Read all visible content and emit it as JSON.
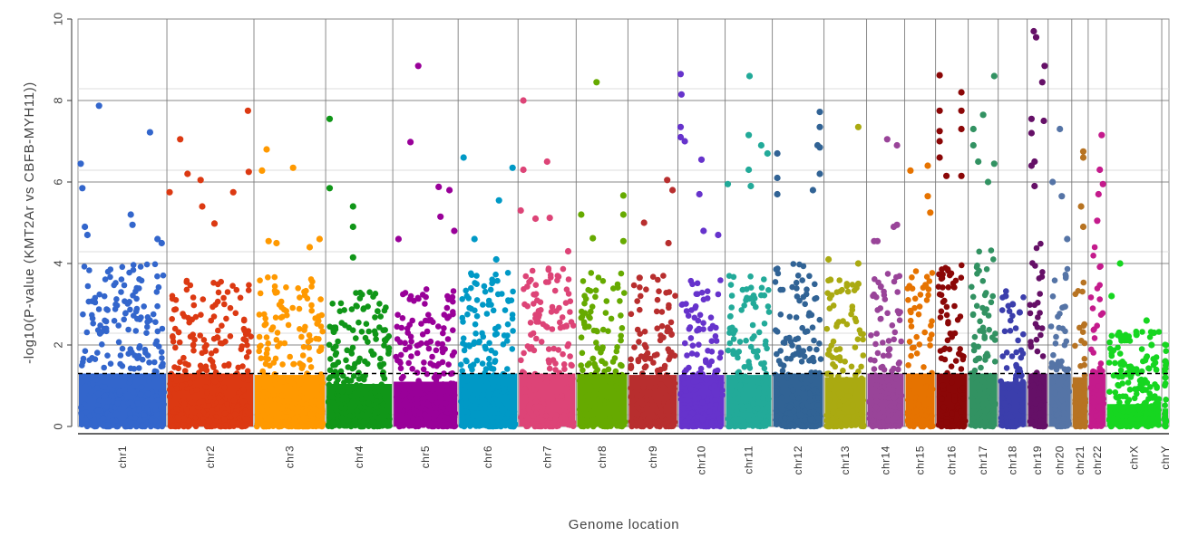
{
  "chart_data": {
    "type": "scatter",
    "subtype": "manhattan",
    "title": "",
    "xlabel": "Genome location",
    "ylabel": "-log10(P-value (KMT2Ar vs CBFB-MYH11))",
    "ylim": [
      0,
      10
    ],
    "yticks": [
      0,
      2,
      4,
      6,
      8,
      10
    ],
    "minor_gridlines": [
      0.29,
      2.29,
      4.29,
      6.29,
      8.29
    ],
    "grid": true,
    "legend": "none",
    "significance_line": {
      "value": 1.3,
      "style": "dashed",
      "color": "#000000"
    },
    "chromosomes": [
      {
        "name": "chr1",
        "color": "#3366cc",
        "span": 0.0812,
        "bulk_max": 2.6,
        "points": [
          [
            0.0,
            6.45
          ],
          [
            0.02,
            5.85
          ],
          [
            0.22,
            7.87
          ],
          [
            0.83,
            7.22
          ],
          [
            0.05,
            4.9
          ],
          [
            0.08,
            4.7
          ],
          [
            0.6,
            5.2
          ],
          [
            0.62,
            4.95
          ],
          [
            0.92,
            4.6
          ],
          [
            0.97,
            4.5
          ]
        ]
      },
      {
        "name": "chr2",
        "color": "#dc3912",
        "span": 0.0795,
        "bulk_max": 2.4,
        "points": [
          [
            0.13,
            7.05
          ],
          [
            0.96,
            7.75
          ],
          [
            0.22,
            6.2
          ],
          [
            0.38,
            6.05
          ],
          [
            0.78,
            5.75
          ],
          [
            0.0,
            5.75
          ],
          [
            0.55,
            4.98
          ],
          [
            0.4,
            5.4
          ],
          [
            0.97,
            6.25
          ]
        ]
      },
      {
        "name": "chr3",
        "color": "#ff9900",
        "span": 0.0655,
        "bulk_max": 2.3,
        "points": [
          [
            0.15,
            6.8
          ],
          [
            0.55,
            6.35
          ],
          [
            0.08,
            6.28
          ],
          [
            0.18,
            4.55
          ],
          [
            0.3,
            4.5
          ],
          [
            0.8,
            4.4
          ],
          [
            0.95,
            4.6
          ]
        ]
      },
      {
        "name": "chr4",
        "color": "#109618",
        "span": 0.0613,
        "bulk_max": 1.9,
        "points": [
          [
            0.02,
            7.55
          ],
          [
            0.02,
            5.85
          ],
          [
            0.4,
            5.4
          ],
          [
            0.4,
            4.9
          ],
          [
            0.4,
            4.15
          ]
        ]
      },
      {
        "name": "chr5",
        "color": "#990099",
        "span": 0.0597,
        "bulk_max": 2.0,
        "points": [
          [
            0.38,
            8.85
          ],
          [
            0.25,
            6.98
          ],
          [
            0.72,
            5.88
          ],
          [
            0.9,
            5.8
          ],
          [
            0.75,
            5.15
          ],
          [
            0.05,
            4.6
          ],
          [
            0.98,
            4.8
          ]
        ]
      },
      {
        "name": "chr6",
        "color": "#0099c6",
        "span": 0.0547,
        "bulk_max": 2.4,
        "points": [
          [
            0.7,
            5.55
          ],
          [
            0.05,
            6.6
          ],
          [
            0.95,
            6.35
          ],
          [
            0.65,
            4.1
          ],
          [
            0.25,
            4.6
          ]
        ]
      },
      {
        "name": "chr7",
        "color": "#dd4477",
        "span": 0.0531,
        "bulk_max": 2.5,
        "points": [
          [
            0.05,
            8.0
          ],
          [
            0.5,
            6.5
          ],
          [
            0.05,
            6.3
          ],
          [
            0.0,
            5.3
          ],
          [
            0.55,
            5.12
          ],
          [
            0.28,
            5.1
          ],
          [
            0.9,
            4.3
          ]
        ]
      },
      {
        "name": "chr8",
        "color": "#66aa00",
        "span": 0.0473,
        "bulk_max": 2.4,
        "points": [
          [
            0.38,
            8.45
          ],
          [
            0.05,
            5.2
          ],
          [
            0.3,
            4.62
          ],
          [
            0.96,
            5.67
          ],
          [
            0.96,
            5.2
          ],
          [
            0.96,
            4.55
          ]
        ]
      },
      {
        "name": "chr9",
        "color": "#b82e2e",
        "span": 0.0456,
        "bulk_max": 2.3,
        "points": [
          [
            0.3,
            5.0
          ],
          [
            0.94,
            5.8
          ],
          [
            0.82,
            6.05
          ],
          [
            0.85,
            4.5
          ],
          [
            0.2,
            3.65
          ]
        ]
      },
      {
        "name": "chr10",
        "color": "#6633cc",
        "span": 0.0431,
        "bulk_max": 2.3,
        "points": [
          [
            0.0,
            8.65
          ],
          [
            0.02,
            8.15
          ],
          [
            0.0,
            7.35
          ],
          [
            0.0,
            7.1
          ],
          [
            0.1,
            7.0
          ],
          [
            0.5,
            6.55
          ],
          [
            0.45,
            5.7
          ],
          [
            0.55,
            4.8
          ],
          [
            0.9,
            4.7
          ]
        ]
      },
      {
        "name": "chr11",
        "color": "#22aa99",
        "span": 0.0431,
        "bulk_max": 2.3,
        "points": [
          [
            0.52,
            8.6
          ],
          [
            0.5,
            7.15
          ],
          [
            0.8,
            6.9
          ],
          [
            0.0,
            5.95
          ],
          [
            0.5,
            6.3
          ],
          [
            0.55,
            5.9
          ],
          [
            0.95,
            6.7
          ]
        ]
      },
      {
        "name": "chr12",
        "color": "#316395",
        "span": 0.0472,
        "bulk_max": 2.6,
        "points": [
          [
            0.97,
            7.72
          ],
          [
            0.97,
            7.35
          ],
          [
            0.97,
            6.85
          ],
          [
            0.92,
            6.9
          ],
          [
            0.97,
            6.2
          ],
          [
            0.05,
            6.7
          ],
          [
            0.05,
            6.1
          ],
          [
            0.05,
            5.7
          ],
          [
            0.82,
            5.8
          ]
        ]
      },
      {
        "name": "chr13",
        "color": "#aaaa11",
        "span": 0.0389,
        "bulk_max": 2.2,
        "points": [
          [
            0.85,
            7.35
          ],
          [
            0.85,
            4.0
          ],
          [
            0.85,
            3.5
          ],
          [
            0.05,
            4.1
          ],
          [
            0.1,
            3.6
          ]
        ]
      },
      {
        "name": "chr14",
        "color": "#994499",
        "span": 0.0348,
        "bulk_max": 2.4,
        "points": [
          [
            0.55,
            7.05
          ],
          [
            0.85,
            6.9
          ],
          [
            0.15,
            4.55
          ],
          [
            0.25,
            4.55
          ],
          [
            0.85,
            4.95
          ],
          [
            0.75,
            4.9
          ]
        ]
      },
      {
        "name": "chr15",
        "color": "#e67300",
        "span": 0.0282,
        "bulk_max": 2.5,
        "points": [
          [
            0.12,
            6.28
          ],
          [
            0.8,
            6.4
          ],
          [
            0.8,
            5.65
          ],
          [
            0.9,
            5.25
          ]
        ]
      },
      {
        "name": "chr16",
        "color": "#8b0707",
        "span": 0.0298,
        "bulk_max": 2.6,
        "points": [
          [
            0.05,
            8.62
          ],
          [
            0.05,
            7.75
          ],
          [
            0.05,
            7.25
          ],
          [
            0.05,
            7.0
          ],
          [
            0.05,
            6.6
          ],
          [
            0.85,
            8.2
          ],
          [
            0.85,
            7.75
          ],
          [
            0.85,
            7.3
          ],
          [
            0.3,
            6.15
          ],
          [
            0.85,
            6.15
          ]
        ]
      },
      {
        "name": "chr17",
        "color": "#329262",
        "span": 0.0274,
        "bulk_max": 3.0,
        "points": [
          [
            0.95,
            8.6
          ],
          [
            0.5,
            7.65
          ],
          [
            0.1,
            7.3
          ],
          [
            0.1,
            6.9
          ],
          [
            0.3,
            6.5
          ],
          [
            0.7,
            6.0
          ],
          [
            0.95,
            6.45
          ]
        ]
      },
      {
        "name": "chr18",
        "color": "#3b3eac",
        "span": 0.0265,
        "bulk_max": 2.0,
        "points": [
          [
            0.2,
            3.2
          ],
          [
            0.5,
            3.0
          ],
          [
            0.8,
            2.8
          ]
        ]
      },
      {
        "name": "chr19",
        "color": "#651067",
        "span": 0.0191,
        "bulk_max": 3.2,
        "points": [
          [
            0.25,
            9.7
          ],
          [
            0.4,
            9.55
          ],
          [
            0.95,
            8.85
          ],
          [
            0.8,
            8.45
          ],
          [
            0.1,
            7.55
          ],
          [
            0.9,
            7.5
          ],
          [
            0.1,
            7.2
          ],
          [
            0.3,
            6.5
          ],
          [
            0.1,
            6.4
          ],
          [
            0.3,
            5.9
          ]
        ]
      },
      {
        "name": "chr20",
        "color": "#5574a6",
        "span": 0.0216,
        "bulk_max": 2.6,
        "points": [
          [
            0.5,
            7.3
          ],
          [
            0.1,
            6.0
          ],
          [
            0.6,
            5.65
          ],
          [
            0.9,
            4.6
          ]
        ]
      },
      {
        "name": "chr21",
        "color": "#b77322",
        "span": 0.015,
        "bulk_max": 2.2,
        "points": [
          [
            0.8,
            6.75
          ],
          [
            0.8,
            6.6
          ],
          [
            0.6,
            5.4
          ],
          [
            0.8,
            4.9
          ]
        ]
      },
      {
        "name": "chr22",
        "color": "#c41b8c",
        "span": 0.0166,
        "bulk_max": 3.0,
        "points": [
          [
            0.85,
            7.15
          ],
          [
            0.7,
            6.3
          ],
          [
            0.95,
            5.95
          ],
          [
            0.6,
            5.7
          ],
          [
            0.5,
            5.05
          ]
        ]
      },
      {
        "name": "chrX",
        "color": "#16d620",
        "span": 0.0506,
        "bulk_max": 1.0,
        "points": [
          [
            0.22,
            4.0
          ],
          [
            0.05,
            3.2
          ],
          [
            0.2,
            2.3
          ],
          [
            0.35,
            2.2
          ],
          [
            0.55,
            2.25
          ],
          [
            0.75,
            2.6
          ],
          [
            0.9,
            2.3
          ],
          [
            0.85,
            2.0
          ]
        ]
      },
      {
        "name": "chrY",
        "color": "#16d620",
        "span": 0.0066,
        "bulk_max": 0.8,
        "points": [
          [
            0.5,
            1.6
          ],
          [
            0.5,
            1.2
          ]
        ]
      }
    ]
  }
}
